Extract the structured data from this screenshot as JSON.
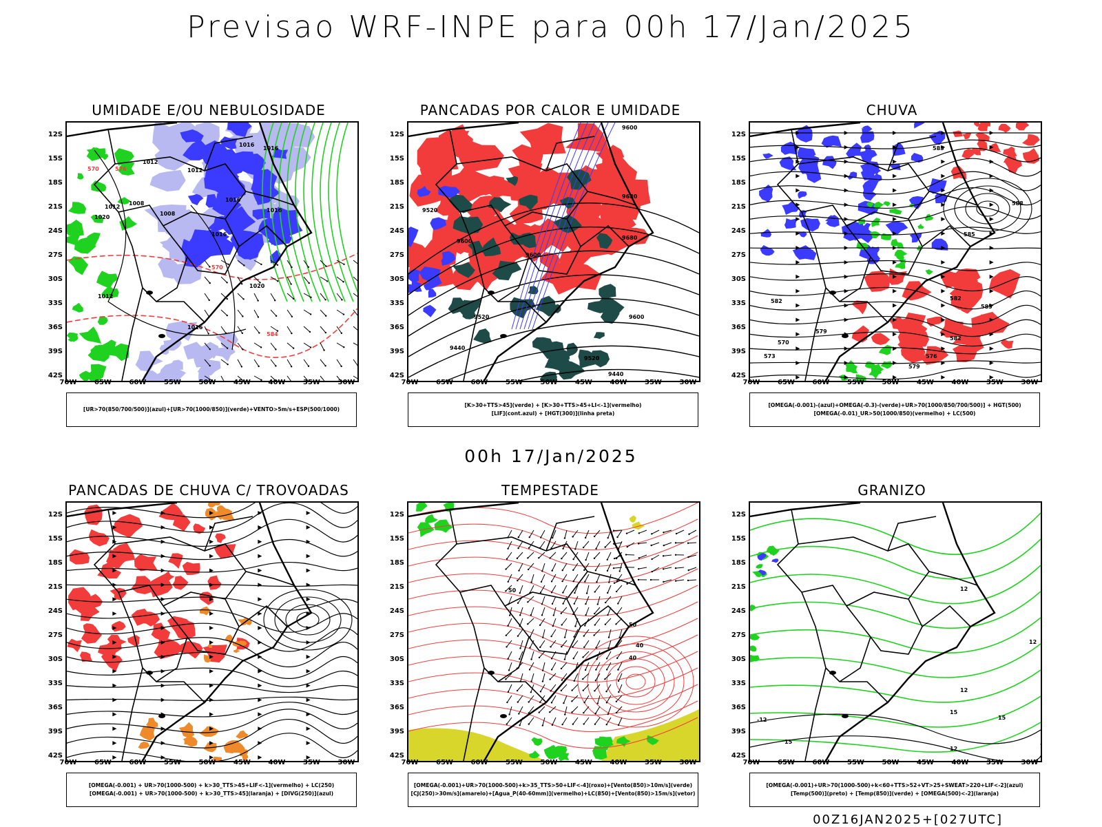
{
  "main_title": "Previsao WRF-INPE  para 00h 17/Jan/2025",
  "mid_title": "00h 17/Jan/2025",
  "footer": "00Z16JAN2025+[027UTC]",
  "lat_labels": [
    "12S",
    "15S",
    "18S",
    "21S",
    "24S",
    "27S",
    "30S",
    "33S",
    "36S",
    "39S",
    "42S"
  ],
  "lon_labels": [
    "70W",
    "65W",
    "60W",
    "55W",
    "50W",
    "45W",
    "40W",
    "35W",
    "30W"
  ],
  "colors": {
    "blue": "#3b3bff",
    "lightblue": "#b9b9f2",
    "green": "#1fd21f",
    "red": "#f23c3c",
    "darkgreen": "#1e4b48",
    "orange": "#ee8a2a",
    "yellow": "#d8d62a"
  },
  "panels": [
    {
      "title": "UMIDADE E/OU NEBULOSIDADE",
      "legend": [
        "[UR>70(850/700/500)](azul)+[UR>70(1000/850)](verde)+VENTO>5m/s+ESP(500/1000)"
      ],
      "labels": [
        "1016",
        "1016",
        "1012",
        "1012",
        "1012",
        "1008",
        "1008",
        "1016",
        "1016",
        "1020",
        "1012",
        "1020",
        "1016",
        "1016",
        "570",
        "576",
        "570",
        "584"
      ]
    },
    {
      "title": "PANCADAS POR CALOR E UMIDADE",
      "legend": [
        "[K>30+TTS>45](verde) + [K>30+TTS>45+LI<-1](vermelho)",
        "[LIF](cont.azul) + [HGT(300)](linha preta)"
      ],
      "labels": [
        "9600",
        "9520",
        "9680",
        "9600",
        "9680",
        "9600",
        "9520",
        "9520",
        "9440",
        "9520",
        "9600",
        "9440"
      ]
    },
    {
      "title": "CHUVA",
      "legend": [
        "[OMEGA(-0.001)-(azul)+OMEGA(-0.3)-(verde)+UR>70(1000/850/700/500)] + HGT(500)",
        "[OMEGA(-0.01)_UR>50(1000/850)(vermelho) + LC(500)"
      ],
      "labels": [
        "585",
        "588",
        "585",
        "582",
        "582",
        "585",
        "582",
        "579",
        "573",
        "576",
        "579",
        "570"
      ]
    },
    {
      "title": "PANCADAS DE CHUVA C/ TROVOADAS",
      "legend": [
        "[OMEGA(-0.001) + UR>70(1000-500) + k>30_TTS>45+LIF<-1](vermelho) + LC(250)",
        "[OMEGA(-0.001) + UR>70(1000-500) + k>30_TTS>45](laranja) + [DIVG(250)](azul)"
      ],
      "labels": []
    },
    {
      "title": "TEMPESTADE",
      "legend": [
        "[OMEGA(-0.001)+UR>70(1000-500)+k>35_TTS>50+LIF<-4](roxo)+[Vento(850)>10m/s](verde)",
        "[CJ(250)>30m/s](amarelo)+[Agua_P(40-60mm)](vermelho)+LC(850)+[Vento(850)>15m/s](vetor)"
      ],
      "labels": [
        "50",
        "40",
        "50",
        "40"
      ]
    },
    {
      "title": "GRANIZO",
      "legend": [
        "[OMEGA(-0.001)+UR>70(1000-500)+k<60+TTS>52+VT>25+SWEAT>220+LIF<-2](azul)",
        "[Temp(500)](preto) + [Temp(850)](verde) + [OMEGA(500)<-2](laranja)"
      ],
      "labels": [
        "12",
        "12",
        "15",
        "-12",
        "12",
        "12",
        "15",
        "15"
      ]
    }
  ]
}
